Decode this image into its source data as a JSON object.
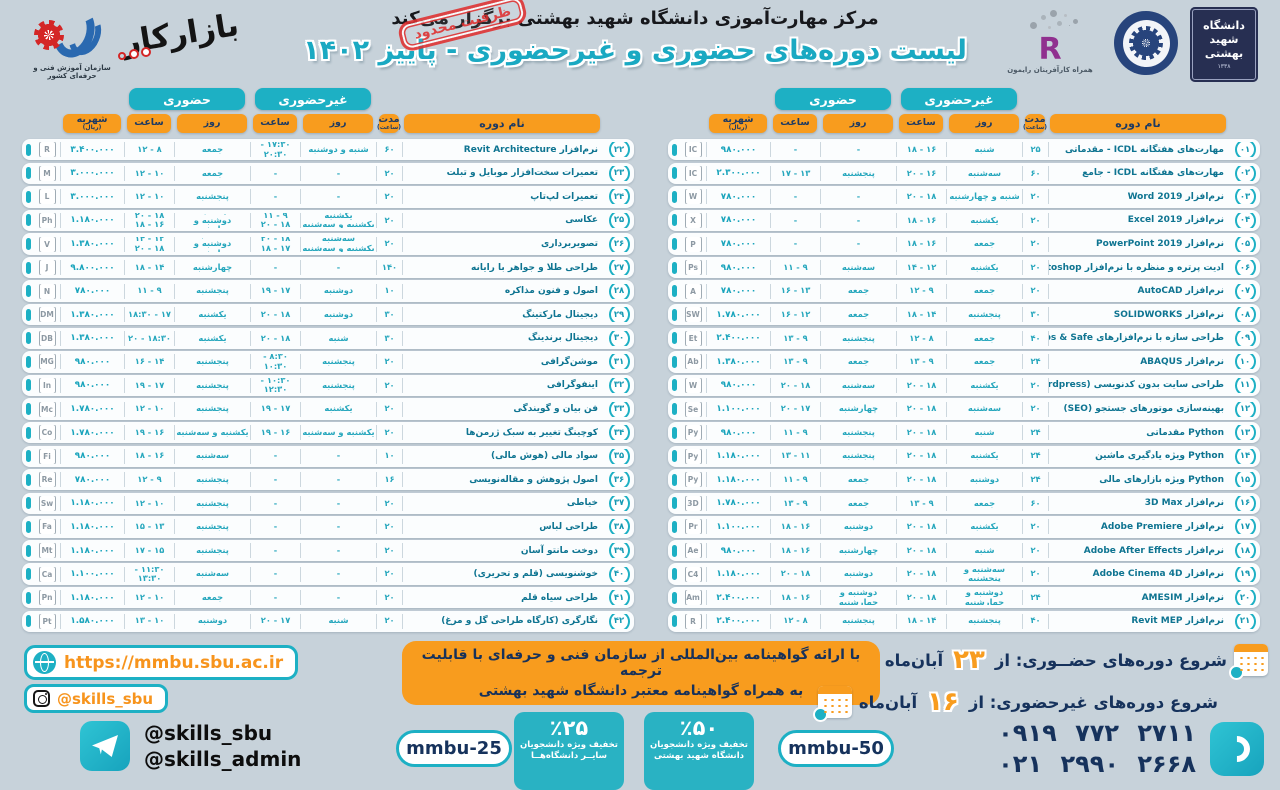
{
  "header": {
    "organizer": "مرکز مهارت‌آموزی دانشگاه شهید بهشتی برگزار می‌کند",
    "title": "لیست دوره‌های حضوری و غیرحضوری - پاییز ۱۴۰۲",
    "stamp": "ظرفیت محدود"
  },
  "columns": {
    "in_person": "حضوری",
    "online": "غیرحضوری",
    "tuition": "شهریه",
    "tuition_unit": "(ریال)",
    "time": "ساعت",
    "day": "روز",
    "duration": "مدت",
    "duration_unit": "(ساعت)",
    "course": "نام دوره"
  },
  "courses_a": [
    {
      "num": "۰۱",
      "icon": "icdl-gauge-icon",
      "icon_label": "IC",
      "name": "مهارت‌های هفتگانه ICDL - مقدماتی",
      "dur": "۲۵",
      "nh_day": "شنبه",
      "nh_time": "۱۶ - ۱۸",
      "h_day": "-",
      "h_time": "-",
      "price": "۹۸۰.۰۰۰"
    },
    {
      "num": "۰۲",
      "icon": "icdl-gauge-icon",
      "icon_label": "IC",
      "name": "مهارت‌های هفتگانه ICDL - جامع",
      "dur": "۶۰",
      "nh_day": "سه‌شنبه",
      "nh_time": "۱۶ - ۲۰",
      "h_day": "پنجشنبه",
      "h_time": "۱۳ - ۱۷",
      "price": "۲.۳۰۰.۰۰۰"
    },
    {
      "num": "۰۳",
      "icon": "word-icon",
      "icon_label": "W",
      "name": "نرم‌افزار Word 2019",
      "dur": "۲۰",
      "nh_day": "شنبه و چهارشنبه",
      "nh_time": "۱۸ - ۲۰",
      "h_day": "-",
      "h_time": "-",
      "price": "۷۸۰.۰۰۰"
    },
    {
      "num": "۰۴",
      "icon": "excel-icon",
      "icon_label": "X",
      "name": "نرم‌افزار Excel 2019",
      "dur": "۲۰",
      "nh_day": "یکشنبه",
      "nh_time": "۱۶ - ۱۸",
      "h_day": "-",
      "h_time": "-",
      "price": "۷۸۰.۰۰۰"
    },
    {
      "num": "۰۵",
      "icon": "powerpoint-icon",
      "icon_label": "P",
      "name": "نرم‌افزار PowerPoint 2019",
      "dur": "۲۰",
      "nh_day": "جمعه",
      "nh_time": "۱۶ - ۱۸",
      "h_day": "-",
      "h_time": "-",
      "price": "۷۸۰.۰۰۰"
    },
    {
      "num": "۰۶",
      "icon": "photoshop-icon",
      "icon_label": "Ps",
      "name": "ادیت پرتره و منظره با نرم‌افزار Photoshop",
      "dur": "۲۰",
      "nh_day": "یکشنبه",
      "nh_time": "۱۲ - ۱۴",
      "h_day": "سه‌شنبه",
      "h_time": "۹ - ۱۱",
      "price": "۹۸۰.۰۰۰"
    },
    {
      "num": "۰۷",
      "icon": "autocad-icon",
      "icon_label": "A",
      "name": "نرم‌افزار AutoCAD",
      "dur": "۲۰",
      "nh_day": "جمعه",
      "nh_time": "۹ - ۱۲",
      "h_day": "جمعه",
      "h_time": "۱۳ - ۱۶",
      "price": "۷۸۰.۰۰۰"
    },
    {
      "num": "۰۸",
      "icon": "solidworks-icon",
      "icon_label": "SW",
      "name": "نرم‌افزار SOLIDWORKS",
      "dur": "۳۰",
      "nh_day": "پنجشنبه",
      "nh_time": "۱۴ - ۱۸",
      "h_day": "جمعه",
      "h_time": "۱۲ - ۱۶",
      "price": "۱.۷۸۰.۰۰۰"
    },
    {
      "num": "۰۹",
      "icon": "etabs-icon",
      "icon_label": "Et",
      "name": "طراحی سازه با نرم‌افزارهای Etabs & Safe",
      "dur": "۴۰",
      "nh_day": "جمعه",
      "nh_time": "۸ - ۱۲",
      "h_day": "پنجشنبه",
      "h_time": "۹ - ۱۳",
      "price": "۲.۴۰۰.۰۰۰"
    },
    {
      "num": "۱۰",
      "icon": "abaqus-icon",
      "icon_label": "Ab",
      "name": "نرم‌افزار ABAQUS",
      "dur": "۲۴",
      "nh_day": "جمعه",
      "nh_time": "۹ - ۱۳",
      "h_day": "جمعه",
      "h_time": "۹ - ۱۳",
      "price": "۱.۳۸۰.۰۰۰"
    },
    {
      "num": "۱۱",
      "icon": "wordpress-icon",
      "icon_label": "W",
      "name": "طراحی سایت بدون کدنویسی (Wordpress)",
      "dur": "۲۰",
      "nh_day": "یکشنبه",
      "nh_time": "۱۸ - ۲۰",
      "h_day": "سه‌شنبه",
      "h_time": "۱۸ - ۲۰",
      "price": "۹۸۰.۰۰۰"
    },
    {
      "num": "۱۲",
      "icon": "seo-icon",
      "icon_label": "Se",
      "name": "بهینه‌سازی موتورهای جستجو (SEO)",
      "dur": "۲۰",
      "nh_day": "سه‌شنبه",
      "nh_time": "۱۸ - ۲۰",
      "h_day": "چهارشنبه",
      "h_time": "۱۷ - ۲۰",
      "price": "۱.۱۰۰.۰۰۰"
    },
    {
      "num": "۱۳",
      "icon": "python-icon",
      "icon_label": "Py",
      "name": "Python مقدماتی",
      "dur": "۲۴",
      "nh_day": "شنبه",
      "nh_time": "۱۸ - ۲۰",
      "h_day": "پنجشنبه",
      "h_time": "۹ - ۱۱",
      "price": "۹۸۰.۰۰۰"
    },
    {
      "num": "۱۴",
      "icon": "python-icon",
      "icon_label": "Py",
      "name": "Python ویژه یادگیری ماشین",
      "dur": "۲۴",
      "nh_day": "یکشنبه",
      "nh_time": "۱۸ - ۲۰",
      "h_day": "پنجشنبه",
      "h_time": "۱۱ - ۱۳",
      "price": "۱.۱۸۰.۰۰۰"
    },
    {
      "num": "۱۵",
      "icon": "python-icon",
      "icon_label": "Py",
      "name": "Python ویژه بازارهای مالی",
      "dur": "۲۴",
      "nh_day": "دوشنبه",
      "nh_time": "۱۸ - ۲۰",
      "h_day": "جمعه",
      "h_time": "۹ - ۱۱",
      "price": "۱.۱۸۰.۰۰۰"
    },
    {
      "num": "۱۶",
      "icon": "3dmax-icon",
      "icon_label": "3D",
      "name": "نرم‌افزار 3D Max",
      "dur": "۶۰",
      "nh_day": "جمعه",
      "nh_time": "۹ - ۱۳",
      "h_day": "جمعه",
      "h_time": "۹ - ۱۳",
      "price": "۱.۷۸۰.۰۰۰"
    },
    {
      "num": "۱۷",
      "icon": "premiere-icon",
      "icon_label": "Pr",
      "name": "نرم‌افزار Adobe Premiere",
      "dur": "۲۰",
      "nh_day": "یکشنبه",
      "nh_time": "۱۸ - ۲۰",
      "h_day": "دوشنبه",
      "h_time": "۱۶ - ۱۸",
      "price": "۱.۱۰۰.۰۰۰"
    },
    {
      "num": "۱۸",
      "icon": "after-effects-icon",
      "icon_label": "Ae",
      "name": "نرم‌افزار Adobe After Effects",
      "dur": "۲۰",
      "nh_day": "شنبه",
      "nh_time": "۱۸ - ۲۰",
      "h_day": "چهارشنبه",
      "h_time": "۱۶ - ۱۸",
      "price": "۹۸۰.۰۰۰"
    },
    {
      "num": "۱۹",
      "icon": "cinema4d-icon",
      "icon_label": "C4",
      "name": "نرم‌افزار Adobe Cinema 4D",
      "dur": "۲۰",
      "nh_day": "سه‌شنبه و پنجشنبه",
      "nh_time": "۱۸ - ۲۰",
      "h_day": "دوشنبه",
      "h_time": "۱۸ - ۲۰",
      "price": "۱.۱۸۰.۰۰۰"
    },
    {
      "num": "۲۰",
      "icon": "amesim-icon",
      "icon_label": "Am",
      "name": "نرم‌افزار AMESIM",
      "dur": "۲۴",
      "nh_day": "دوشنبه و چهارشنبه",
      "nh_time": "۱۸ - ۲۰",
      "h_day": "دوشنبه و چهارشنبه",
      "h_time": "۱۶ - ۱۸",
      "price": "۲.۴۰۰.۰۰۰"
    },
    {
      "num": "۲۱",
      "icon": "revit-icon",
      "icon_label": "R",
      "name": "نرم‌افزار Revit MEP",
      "dur": "۴۰",
      "nh_day": "پنجشنبه",
      "nh_time": "۱۴ - ۱۸",
      "h_day": "پنجشنبه",
      "h_time": "۸ - ۱۲",
      "price": "۲.۴۰۰.۰۰۰"
    }
  ],
  "courses_b": [
    {
      "num": "۲۲",
      "icon": "revit-icon",
      "icon_label": "R",
      "name": "نرم‌افزار Revit Architecture",
      "dur": "۶۰",
      "nh_day": "شنبه و دوشنبه",
      "nh_time": "۱۷:۳۰ - ۲۰:۳۰",
      "h_day": "جمعه",
      "h_time": "۸ - ۱۲",
      "price": "۳.۴۰۰.۰۰۰"
    },
    {
      "num": "۲۳",
      "icon": "mobile-repair-icon",
      "icon_label": "M",
      "name": "تعمیرات سخت‌افزار موبایل و تبلت",
      "dur": "۲۰",
      "nh_day": "-",
      "nh_time": "-",
      "h_day": "جمعه",
      "h_time": "۱۰ - ۱۲",
      "price": "۳.۰۰۰.۰۰۰"
    },
    {
      "num": "۲۴",
      "icon": "laptop-repair-icon",
      "icon_label": "L",
      "name": "تعمیرات لپ‌تاپ",
      "dur": "۲۰",
      "nh_day": "-",
      "nh_time": "-",
      "h_day": "پنجشنبه",
      "h_time": "۱۰ - ۱۲",
      "price": "۳.۰۰۰.۰۰۰"
    },
    {
      "num": "۲۵",
      "icon": "camera-icon",
      "icon_label": "Ph",
      "name": "عکاسی",
      "dur": "۲۰",
      "nh_day": "یکشنبه\nیکشنبه و سه‌شنبه",
      "nh_time": "۹ - ۱۱\n۱۸ - ۲۰",
      "h_day": "یکشنبه\nدوشنبه و چهارشنبه",
      "h_time": "۱۸ - ۲۰\n۱۶ - ۱۸",
      "price": "۱.۱۸۰.۰۰۰"
    },
    {
      "num": "۲۶",
      "icon": "video-camera-icon",
      "icon_label": "V",
      "name": "تصویربرداری",
      "dur": "۲۰",
      "nh_day": "سه‌شنبه\nیکشنبه و سه‌شنبه",
      "nh_time": "۱۸ - ۲۰\n۱۷ - ۱۸",
      "h_day": "سه‌شنبه\nدوشنبه و چهارشنبه",
      "h_time": "۱۲ - ۱۴\n۱۸ - ۲۰",
      "price": "۱.۳۸۰.۰۰۰"
    },
    {
      "num": "۲۷",
      "icon": "jewelry-icon",
      "icon_label": "J",
      "name": "طراحی طلا و جواهر با رایانه",
      "dur": "۱۴۰",
      "nh_day": "-",
      "nh_time": "-",
      "h_day": "چهارشنبه",
      "h_time": "۱۴ - ۱۸",
      "price": "۹.۸۰۰.۰۰۰"
    },
    {
      "num": "۲۸",
      "icon": "negotiation-icon",
      "icon_label": "N",
      "name": "اصول و فنون مذاکره",
      "dur": "۱۰",
      "nh_day": "دوشنبه",
      "nh_time": "۱۷ - ۱۹",
      "h_day": "پنجشنبه",
      "h_time": "۹ - ۱۱",
      "price": "۷۸۰.۰۰۰"
    },
    {
      "num": "۲۹",
      "icon": "digital-marketing-icon",
      "icon_label": "DM",
      "name": "دیجیتال مارکتینگ",
      "dur": "۳۰",
      "nh_day": "دوشنبه",
      "nh_time": "۱۸ - ۲۰",
      "h_day": "یکشنبه",
      "h_time": "۱۷ - ۱۸:۳۰",
      "price": "۱.۳۸۰.۰۰۰"
    },
    {
      "num": "۳۰",
      "icon": "branding-icon",
      "icon_label": "DB",
      "name": "دیجیتال برندینگ",
      "dur": "۳۰",
      "nh_day": "شنبه",
      "nh_time": "۱۸ - ۲۰",
      "h_day": "یکشنبه",
      "h_time": "۱۸:۳۰ - ۲۰",
      "price": "۱.۳۸۰.۰۰۰"
    },
    {
      "num": "۳۱",
      "icon": "motion-graphics-icon",
      "icon_label": "MG",
      "name": "موشن‌گرافی",
      "dur": "۲۰",
      "nh_day": "پنجشنبه",
      "nh_time": "۸:۳۰ - ۱۰:۳۰",
      "h_day": "پنجشنبه",
      "h_time": "۱۴ - ۱۶",
      "price": "۹۸۰.۰۰۰"
    },
    {
      "num": "۳۲",
      "icon": "infographic-icon",
      "icon_label": "In",
      "name": "اینفوگرافی",
      "dur": "۲۰",
      "nh_day": "پنجشنبه",
      "nh_time": "۱۰:۳۰ - ۱۲:۳۰",
      "h_day": "پنجشنبه",
      "h_time": "۱۷ - ۱۹",
      "price": "۹۸۰.۰۰۰"
    },
    {
      "num": "۳۳",
      "icon": "microphone-icon",
      "icon_label": "Mc",
      "name": "فن بیان و گویندگی",
      "dur": "۲۰",
      "nh_day": "یکشنبه",
      "nh_time": "۱۷ - ۱۹",
      "h_day": "پنجشنبه",
      "h_time": "۱۰ - ۱۲",
      "price": "۱.۷۸۰.۰۰۰"
    },
    {
      "num": "۳۴",
      "icon": "coaching-icon",
      "icon_label": "Co",
      "name": "کوچینگ تغییر به سبک ژرمن‌ها",
      "dur": "۲۰",
      "nh_day": "یکشنبه و سه‌شنبه",
      "nh_time": "۱۶ - ۱۹",
      "h_day": "یکشنبه و سه‌شنبه",
      "h_time": "۱۶ - ۱۹",
      "price": "۱.۷۸۰.۰۰۰"
    },
    {
      "num": "۳۵",
      "icon": "finance-icon",
      "icon_label": "Fi",
      "name": "سواد مالی (هوش مالی)",
      "dur": "۱۰",
      "nh_day": "-",
      "nh_time": "-",
      "h_day": "سه‌شنبه",
      "h_time": "۱۶ - ۱۸",
      "price": "۹۸۰.۰۰۰"
    },
    {
      "num": "۳۶",
      "icon": "research-paper-icon",
      "icon_label": "Re",
      "name": "اصول پژوهش و مقاله‌نویسی",
      "dur": "۱۶",
      "nh_day": "-",
      "nh_time": "-",
      "h_day": "پنجشنبه",
      "h_time": "۹ - ۱۲",
      "price": "۷۸۰.۰۰۰"
    },
    {
      "num": "۳۷",
      "icon": "sewing-icon",
      "icon_label": "Sw",
      "name": "خیاطی",
      "dur": "۲۰",
      "nh_day": "-",
      "nh_time": "-",
      "h_day": "پنجشنبه",
      "h_time": "۱۰ - ۱۲",
      "price": "۱.۱۸۰.۰۰۰"
    },
    {
      "num": "۳۸",
      "icon": "fashion-design-icon",
      "icon_label": "Fa",
      "name": "طراحی لباس",
      "dur": "۲۰",
      "nh_day": "-",
      "nh_time": "-",
      "h_day": "پنجشنبه",
      "h_time": "۱۳ - ۱۵",
      "price": "۱.۱۸۰.۰۰۰"
    },
    {
      "num": "۳۹",
      "icon": "manto-sewing-icon",
      "icon_label": "Mt",
      "name": "دوخت مانتو آسان",
      "dur": "۲۰",
      "nh_day": "-",
      "nh_time": "-",
      "h_day": "پنجشنبه",
      "h_time": "۱۵ - ۱۷",
      "price": "۱.۱۸۰.۰۰۰"
    },
    {
      "num": "۴۰",
      "icon": "calligraphy-icon",
      "icon_label": "Ca",
      "name": "خوشنویسی (قلم و تحریری)",
      "dur": "۲۰",
      "nh_day": "-",
      "nh_time": "-",
      "h_day": "سه‌شنبه",
      "h_time": "۱۱:۳۰ - ۱۳:۳۰",
      "price": "۱.۱۰۰.۰۰۰"
    },
    {
      "num": "۴۱",
      "icon": "pencil-drawing-icon",
      "icon_label": "Pn",
      "name": "طراحی سیاه قلم",
      "dur": "۲۰",
      "nh_day": "-",
      "nh_time": "-",
      "h_day": "جمعه",
      "h_time": "۱۰ - ۱۲",
      "price": "۱.۱۸۰.۰۰۰"
    },
    {
      "num": "۴۲",
      "icon": "painting-icon",
      "icon_label": "Pt",
      "name": "نگارگری (کارگاه طراحی گل و مرغ)",
      "dur": "۲۰",
      "nh_day": "شنبه",
      "nh_time": "۱۷ - ۲۰",
      "h_day": "دوشنبه",
      "h_time": "۱۰ - ۱۳",
      "price": "۱.۵۸۰.۰۰۰"
    }
  ],
  "certificate": {
    "line1": "با ارائه گواهینامه بین‌المللی از سازمان فنی و حرفه‌ای با قابلیت ترجمه",
    "line2": "به همراه گواهینامه معتبر دانشگاه شهید بهشتی"
  },
  "discounts": [
    {
      "code": "mmbu-25",
      "percent": "٪۲۵",
      "line1": "تخفیف ویژه دانشجویان",
      "line2": "سایــر دانشگاه‌هــا"
    },
    {
      "code": "mmbu-50",
      "percent": "٪۵۰",
      "line1": "تخفیف ویژه دانشجویان",
      "line2": "دانشگاه شهید بهشتی"
    }
  ],
  "start_dates": {
    "in_person_label": "شروع دوره‌های حضــوری: از",
    "in_person_day": "۲۳",
    "online_label": "شروع دوره‌های غیرحضوری: از",
    "online_day": "۱۶",
    "month": "آبان‌ماه"
  },
  "phones": {
    "mobile": "۰۹۱۹ ۷۷۲ ۲۷۱۱",
    "landline": "۰۲۱ ۲۹۹۰ ۲۶۶۸"
  },
  "contact": {
    "website": "https://mmbu.sbu.ac.ir",
    "instagram": "@skills_sbu",
    "telegram_1": "@skills_sbu",
    "telegram_2": "@skills_admin"
  },
  "logos": {
    "tvto_caption": "سازمان آموزش فنی و حرفه‌ای کشور",
    "bazarekar": "بازارکار",
    "raymon_letter": "R",
    "raymon_caption": "همراه کارآفرینان رایمون",
    "sbu_name": "دانشگاه شهید بهشتی",
    "sbu_year": "۱۳۳۸"
  }
}
